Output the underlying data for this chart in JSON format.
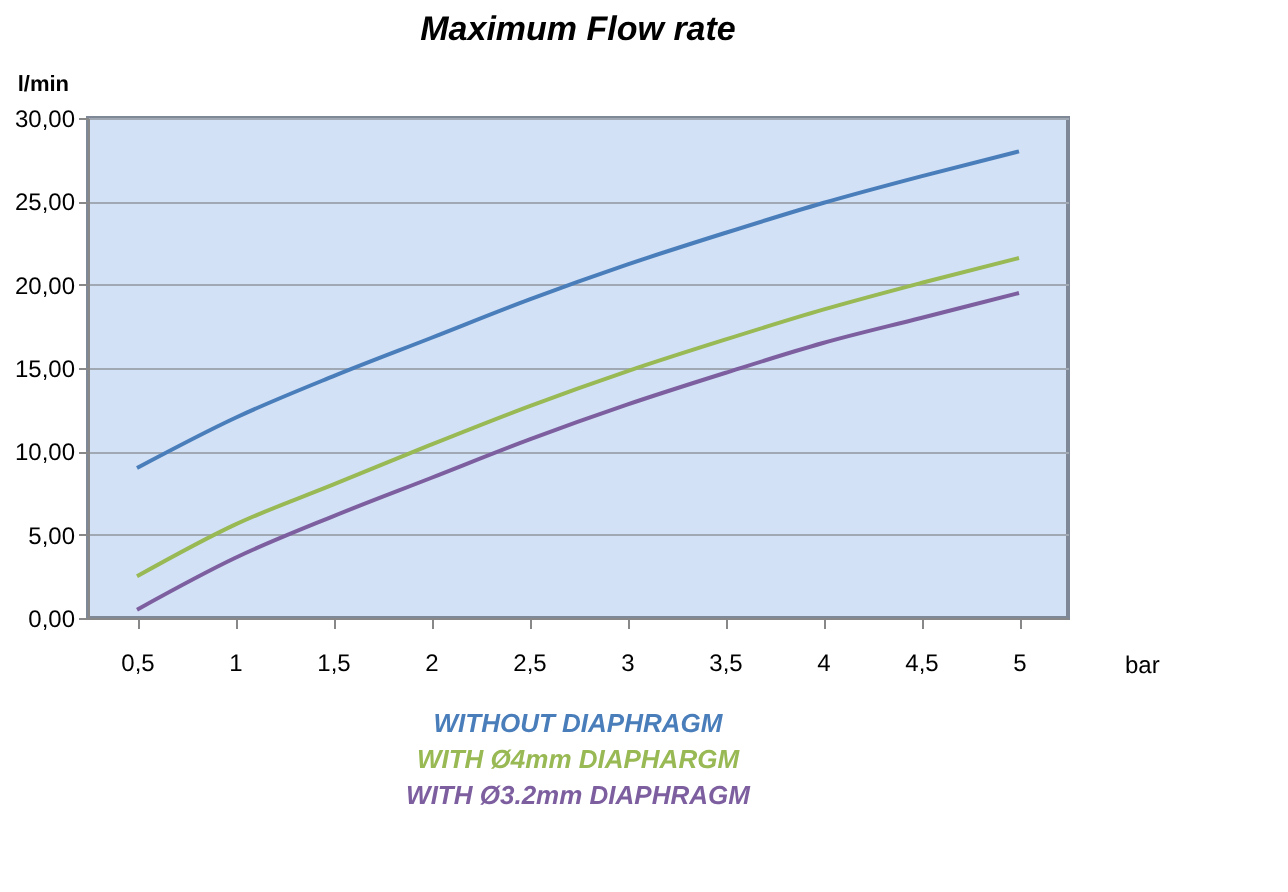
{
  "chart_data": {
    "type": "line",
    "title": "Maximum Flow rate",
    "xlabel": "bar",
    "ylabel": "l/min",
    "categories": [
      "0,5",
      "1",
      "1,5",
      "2",
      "2,5",
      "3",
      "3,5",
      "4",
      "4,5",
      "5"
    ],
    "series": [
      {
        "name": "WITHOUT DIAPHRAGM",
        "color": "#4a7ebb",
        "values": [
          9.0,
          12.0,
          14.5,
          16.8,
          19.1,
          21.2,
          23.1,
          24.9,
          26.5,
          28.0
        ]
      },
      {
        "name": "WITH Ø4mm DIAPHARGM",
        "color": "#98b954",
        "values": [
          2.5,
          5.6,
          8.0,
          10.4,
          12.7,
          14.8,
          16.7,
          18.5,
          20.1,
          21.6
        ]
      },
      {
        "name": "WITH Ø3.2mm DIAPHRAGM",
        "color": "#7d5fa0",
        "values": [
          0.5,
          3.6,
          6.1,
          8.4,
          10.7,
          12.8,
          14.7,
          16.5,
          18.0,
          19.5
        ]
      }
    ],
    "ylim": [
      0,
      30
    ],
    "yticks": [
      {
        "value": 0,
        "label": "0,00"
      },
      {
        "value": 5,
        "label": "5,00"
      },
      {
        "value": 10,
        "label": "10,00"
      },
      {
        "value": 15,
        "label": "15,00"
      },
      {
        "value": 20,
        "label": "20,00"
      },
      {
        "value": 25,
        "label": "25,00"
      },
      {
        "value": 30,
        "label": "30,00"
      }
    ],
    "grid": "y",
    "legend": "bottom",
    "marker": "none",
    "line_style": "solid"
  }
}
